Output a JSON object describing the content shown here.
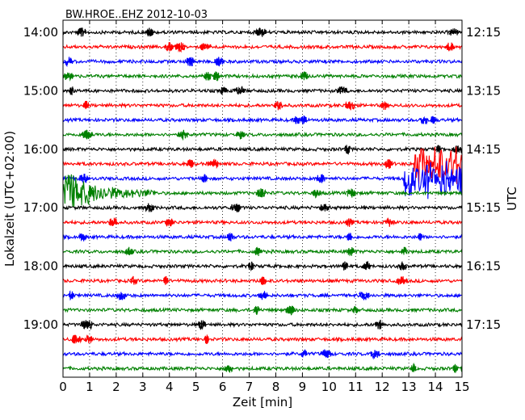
{
  "chart_data": {
    "type": "line",
    "title": "BW.HROE..EHZ 2012-10-03",
    "xlabel": "Zeit  [min]",
    "ylabel_left": "Lokalzeit (UTC+02:00)",
    "ylabel_right": "UTC",
    "xlim": [
      0,
      15
    ],
    "xticks": [
      "0",
      "1",
      "2",
      "3",
      "4",
      "5",
      "6",
      "7",
      "8",
      "9",
      "10",
      "11",
      "12",
      "13",
      "14",
      "15"
    ],
    "grid": "vertical dotted",
    "line_count": 24,
    "minutes_per_line": 15,
    "line_colors": [
      "#000000",
      "#ff0000",
      "#0000ff",
      "#008000"
    ],
    "left_tick_labels": [
      "14:00",
      "15:00",
      "16:00",
      "17:00",
      "18:00",
      "19:00"
    ],
    "right_tick_labels": [
      "12:15",
      "13:15",
      "14:15",
      "15:15",
      "16:15",
      "17:15"
    ],
    "events": [
      {
        "line_local_time": "16:45",
        "start_min": 0.0,
        "end_min": 3.5,
        "description": "large event with decaying coda"
      },
      {
        "line_local_time": "16:30",
        "start_min": 12.8,
        "end_min": 15.0,
        "description": "strong burst"
      },
      {
        "line_local_time": "16:15",
        "start_min": 13.2,
        "end_min": 15.0,
        "description": "strong burst"
      }
    ]
  }
}
